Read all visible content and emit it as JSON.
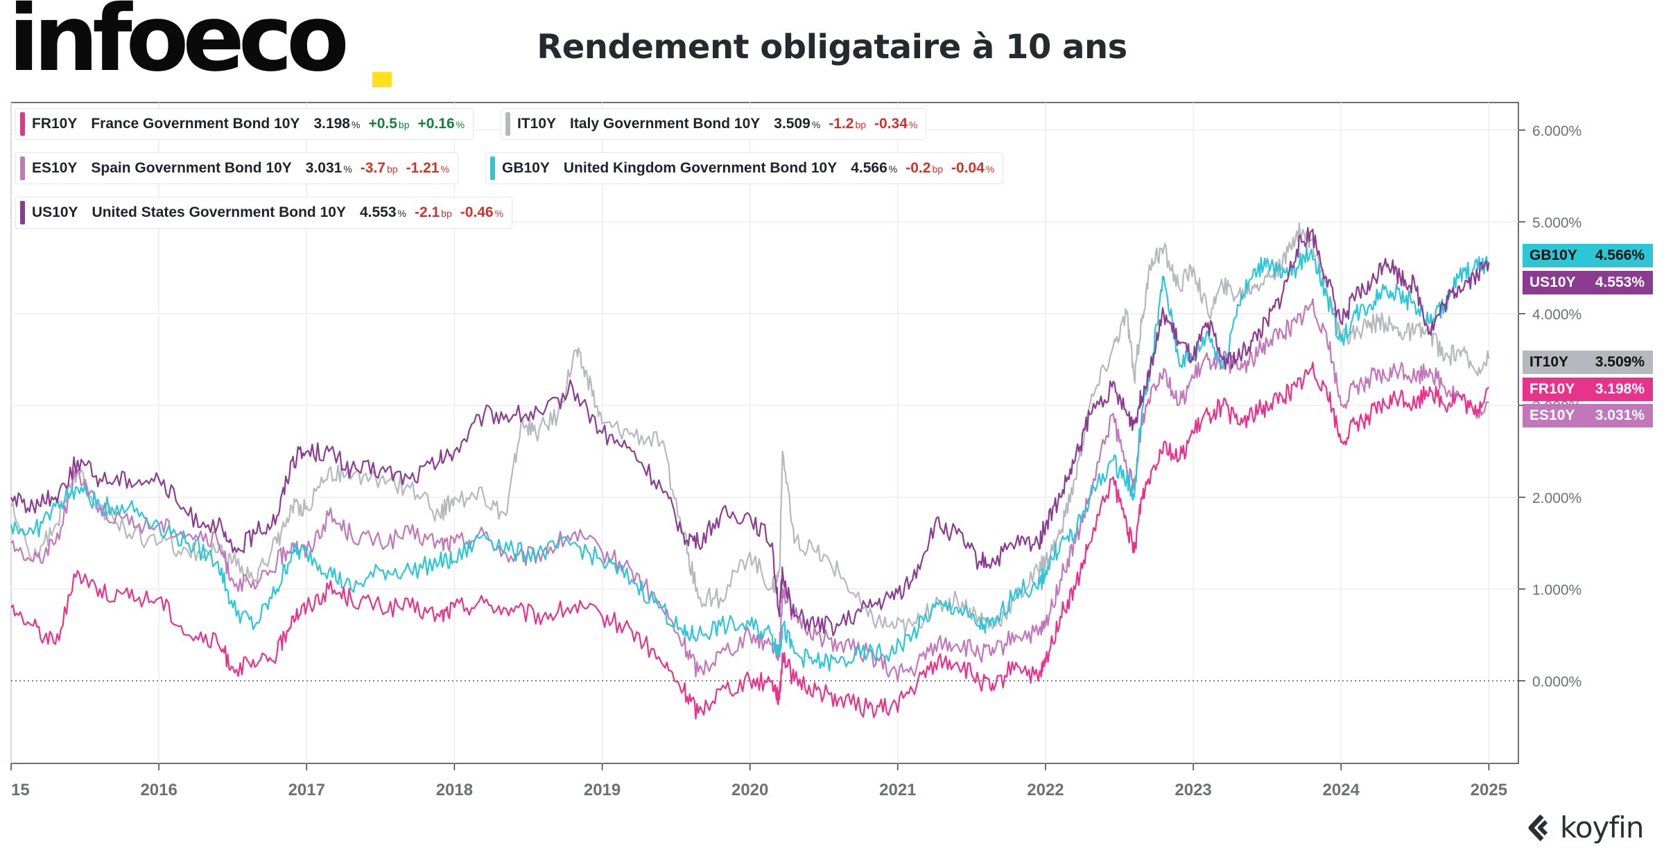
{
  "brand": {
    "name": "infoeco",
    "dot_color": "#ffe01a"
  },
  "footer": {
    "source": "koyfin"
  },
  "chart_data": {
    "type": "line",
    "title": "Rendement obligataire à 10 ans",
    "x_axis": {
      "ticks": [
        "15",
        "2016",
        "2017",
        "2018",
        "2019",
        "2020",
        "2021",
        "2022",
        "2023",
        "2024",
        "2025"
      ],
      "range": [
        2015.0,
        2025.2
      ]
    },
    "y_axis": {
      "ticks": [
        "6.000%",
        "5.000%",
        "4.000%",
        "3.000%",
        "2.000%",
        "1.000%",
        "0.000%"
      ],
      "range": [
        -0.9,
        6.3
      ],
      "side": "right"
    },
    "zero_line": "dotted",
    "grid": true,
    "legend_position": "top-left",
    "series": [
      {
        "code": "FR10Y",
        "name": "France Government Bond 10Y",
        "color": "#e8338a",
        "last": "3.198",
        "change_bp": "+0.5",
        "change_pct": "+0.16%",
        "direction": "pos",
        "end_label": "3.198%",
        "x": [
          2015.0,
          2015.15,
          2015.3,
          2015.45,
          2015.6,
          2015.8,
          2016.0,
          2016.2,
          2016.4,
          2016.5,
          2016.65,
          2016.8,
          2016.9,
          2017.0,
          2017.15,
          2017.3,
          2017.5,
          2017.7,
          2017.9,
          2018.0,
          2018.2,
          2018.4,
          2018.6,
          2018.8,
          2019.0,
          2019.2,
          2019.4,
          2019.55,
          2019.65,
          2019.8,
          2020.0,
          2020.15,
          2020.2,
          2020.22,
          2020.3,
          2020.45,
          2020.6,
          2020.8,
          2020.95,
          2021.1,
          2021.25,
          2021.4,
          2021.55,
          2021.65,
          2021.8,
          2021.95,
          2022.0,
          2022.1,
          2022.2,
          2022.3,
          2022.45,
          2022.55,
          2022.6,
          2022.65,
          2022.72,
          2022.8,
          2022.9,
          2023.0,
          2023.1,
          2023.2,
          2023.3,
          2023.4,
          2023.5,
          2023.6,
          2023.7,
          2023.8,
          2023.9,
          2024.0,
          2024.1,
          2024.2,
          2024.3,
          2024.4,
          2024.5,
          2024.6,
          2024.7,
          2024.8,
          2024.9,
          2025.0
        ],
        "y": [
          0.8,
          0.6,
          0.4,
          1.2,
          1.0,
          0.9,
          0.9,
          0.5,
          0.4,
          0.15,
          0.15,
          0.3,
          0.7,
          0.8,
          1.0,
          0.9,
          0.8,
          0.8,
          0.7,
          0.8,
          0.85,
          0.75,
          0.7,
          0.8,
          0.7,
          0.55,
          0.2,
          -0.1,
          -0.35,
          -0.1,
          0.0,
          0.0,
          -0.2,
          0.3,
          0.0,
          -0.1,
          -0.2,
          -0.3,
          -0.3,
          -0.1,
          0.2,
          0.2,
          0.0,
          -0.1,
          0.2,
          0.0,
          0.2,
          0.7,
          1.0,
          1.5,
          2.2,
          1.7,
          1.4,
          2.0,
          2.3,
          2.6,
          2.4,
          2.7,
          2.9,
          3.0,
          2.8,
          2.9,
          3.0,
          3.1,
          3.2,
          3.4,
          3.2,
          2.6,
          2.8,
          2.9,
          3.0,
          3.1,
          3.0,
          3.2,
          3.0,
          3.1,
          2.9,
          3.198
        ]
      },
      {
        "code": "IT10Y",
        "name": "Italy Government Bond 10Y",
        "color": "#b5b8bc",
        "last": "3.509",
        "change_bp": "-1.2",
        "change_pct": "-0.34%",
        "direction": "neg",
        "end_label": "3.509%",
        "x": [
          2015.0,
          2015.15,
          2015.3,
          2015.45,
          2015.6,
          2015.8,
          2016.0,
          2016.2,
          2016.4,
          2016.5,
          2016.65,
          2016.8,
          2016.9,
          2017.0,
          2017.15,
          2017.3,
          2017.5,
          2017.7,
          2017.9,
          2018.0,
          2018.2,
          2018.35,
          2018.45,
          2018.55,
          2018.7,
          2018.82,
          2018.9,
          2019.0,
          2019.2,
          2019.4,
          2019.55,
          2019.65,
          2019.8,
          2020.0,
          2020.15,
          2020.2,
          2020.22,
          2020.3,
          2020.45,
          2020.6,
          2020.8,
          2020.95,
          2021.1,
          2021.25,
          2021.4,
          2021.55,
          2021.65,
          2021.8,
          2021.95,
          2022.0,
          2022.1,
          2022.2,
          2022.3,
          2022.45,
          2022.55,
          2022.6,
          2022.65,
          2022.72,
          2022.8,
          2022.9,
          2023.0,
          2023.1,
          2023.2,
          2023.3,
          2023.4,
          2023.5,
          2023.6,
          2023.7,
          2023.8,
          2023.9,
          2024.0,
          2024.1,
          2024.2,
          2024.3,
          2024.4,
          2024.5,
          2024.6,
          2024.7,
          2024.8,
          2024.9,
          2025.0
        ],
        "y": [
          1.9,
          1.3,
          1.7,
          2.3,
          1.9,
          1.6,
          1.5,
          1.4,
          1.4,
          1.3,
          1.1,
          1.5,
          1.9,
          1.9,
          2.3,
          2.2,
          2.2,
          2.1,
          1.8,
          2.0,
          2.0,
          1.8,
          2.8,
          2.7,
          2.9,
          3.6,
          3.3,
          2.8,
          2.7,
          2.6,
          1.6,
          0.9,
          0.9,
          1.4,
          1.0,
          1.2,
          2.5,
          1.5,
          1.4,
          1.2,
          0.7,
          0.6,
          0.6,
          0.8,
          0.9,
          0.7,
          0.6,
          0.9,
          1.2,
          1.3,
          1.6,
          2.2,
          3.0,
          3.6,
          4.0,
          3.3,
          3.9,
          4.6,
          4.7,
          4.3,
          4.5,
          4.0,
          4.3,
          4.2,
          4.3,
          4.4,
          4.5,
          4.9,
          4.8,
          4.3,
          3.7,
          3.8,
          3.9,
          3.9,
          3.8,
          3.8,
          3.8,
          3.5,
          3.6,
          3.4,
          3.509
        ]
      },
      {
        "code": "ES10Y",
        "name": "Spain Government Bond 10Y",
        "color": "#c277bb",
        "last": "3.031",
        "change_bp": "-3.7",
        "change_pct": "-1.21%",
        "direction": "neg",
        "end_label": "3.031%",
        "x": [
          2015.0,
          2015.15,
          2015.3,
          2015.45,
          2015.6,
          2015.8,
          2016.0,
          2016.2,
          2016.4,
          2016.5,
          2016.65,
          2016.8,
          2016.9,
          2017.0,
          2017.15,
          2017.3,
          2017.5,
          2017.7,
          2017.9,
          2018.0,
          2018.2,
          2018.4,
          2018.6,
          2018.8,
          2019.0,
          2019.2,
          2019.4,
          2019.55,
          2019.65,
          2019.8,
          2020.0,
          2020.15,
          2020.2,
          2020.22,
          2020.3,
          2020.45,
          2020.6,
          2020.8,
          2020.95,
          2021.1,
          2021.25,
          2021.4,
          2021.55,
          2021.65,
          2021.8,
          2021.95,
          2022.0,
          2022.1,
          2022.2,
          2022.3,
          2022.45,
          2022.55,
          2022.6,
          2022.65,
          2022.72,
          2022.8,
          2022.9,
          2023.0,
          2023.1,
          2023.2,
          2023.3,
          2023.4,
          2023.5,
          2023.6,
          2023.7,
          2023.8,
          2023.9,
          2024.0,
          2024.1,
          2024.2,
          2024.3,
          2024.4,
          2024.5,
          2024.6,
          2024.7,
          2024.8,
          2024.9,
          2025.0
        ],
        "y": [
          1.5,
          1.3,
          1.5,
          2.3,
          1.9,
          1.7,
          1.7,
          1.6,
          1.5,
          1.1,
          1.0,
          1.3,
          1.5,
          1.4,
          1.8,
          1.6,
          1.5,
          1.6,
          1.5,
          1.5,
          1.6,
          1.3,
          1.4,
          1.6,
          1.4,
          1.2,
          0.8,
          0.4,
          0.1,
          0.3,
          0.5,
          0.4,
          0.3,
          1.0,
          0.7,
          0.5,
          0.4,
          0.3,
          0.1,
          0.1,
          0.4,
          0.4,
          0.3,
          0.3,
          0.5,
          0.5,
          0.6,
          1.1,
          1.5,
          2.0,
          2.9,
          2.3,
          2.1,
          2.8,
          3.2,
          3.4,
          3.0,
          3.3,
          3.5,
          3.5,
          3.4,
          3.5,
          3.7,
          3.8,
          3.9,
          4.1,
          3.8,
          3.0,
          3.2,
          3.3,
          3.3,
          3.4,
          3.3,
          3.4,
          3.2,
          3.1,
          2.9,
          3.031
        ]
      },
      {
        "code": "GB10Y",
        "name": "United Kingdom Government Bond 10Y",
        "color": "#2cc6d6",
        "last": "4.566",
        "change_bp": "-0.2",
        "change_pct": "-0.04%",
        "direction": "neg",
        "end_label": "4.566%",
        "x": [
          2015.0,
          2015.15,
          2015.3,
          2015.45,
          2015.6,
          2015.8,
          2016.0,
          2016.2,
          2016.4,
          2016.5,
          2016.65,
          2016.8,
          2016.9,
          2017.0,
          2017.15,
          2017.3,
          2017.5,
          2017.7,
          2017.9,
          2018.0,
          2018.2,
          2018.4,
          2018.6,
          2018.8,
          2019.0,
          2019.2,
          2019.4,
          2019.55,
          2019.65,
          2019.8,
          2020.0,
          2020.15,
          2020.2,
          2020.22,
          2020.3,
          2020.45,
          2020.6,
          2020.8,
          2020.95,
          2021.1,
          2021.25,
          2021.4,
          2021.55,
          2021.65,
          2021.8,
          2021.95,
          2022.0,
          2022.1,
          2022.2,
          2022.3,
          2022.45,
          2022.55,
          2022.6,
          2022.65,
          2022.72,
          2022.8,
          2022.9,
          2023.0,
          2023.1,
          2023.2,
          2023.3,
          2023.4,
          2023.5,
          2023.6,
          2023.7,
          2023.8,
          2023.9,
          2024.0,
          2024.1,
          2024.2,
          2024.3,
          2024.4,
          2024.5,
          2024.6,
          2024.7,
          2024.8,
          2024.9,
          2025.0
        ],
        "y": [
          1.7,
          1.6,
          1.9,
          2.1,
          1.9,
          1.9,
          1.7,
          1.5,
          1.3,
          0.8,
          0.6,
          1.0,
          1.4,
          1.4,
          1.2,
          1.0,
          1.2,
          1.2,
          1.3,
          1.3,
          1.6,
          1.4,
          1.4,
          1.5,
          1.3,
          1.1,
          0.8,
          0.5,
          0.5,
          0.6,
          0.6,
          0.5,
          0.3,
          0.6,
          0.3,
          0.2,
          0.2,
          0.3,
          0.3,
          0.5,
          0.8,
          0.8,
          0.6,
          0.6,
          1.0,
          1.0,
          1.2,
          1.5,
          1.6,
          2.0,
          2.4,
          2.2,
          2.0,
          2.9,
          3.5,
          4.4,
          3.5,
          3.5,
          3.8,
          3.4,
          4.1,
          4.4,
          4.6,
          4.4,
          4.5,
          4.7,
          4.2,
          3.7,
          4.0,
          4.1,
          4.3,
          4.2,
          4.1,
          3.9,
          4.1,
          4.4,
          4.5,
          4.566
        ]
      },
      {
        "code": "US10Y",
        "name": "United States Government Bond 10Y",
        "color": "#8b3c91",
        "last": "4.553",
        "change_bp": "-2.1",
        "change_pct": "-0.46%",
        "direction": "neg",
        "end_label": "4.553%",
        "x": [
          2015.0,
          2015.15,
          2015.3,
          2015.45,
          2015.6,
          2015.8,
          2016.0,
          2016.2,
          2016.4,
          2016.5,
          2016.65,
          2016.8,
          2016.9,
          2017.0,
          2017.15,
          2017.3,
          2017.5,
          2017.7,
          2017.9,
          2018.0,
          2018.2,
          2018.4,
          2018.6,
          2018.8,
          2019.0,
          2019.2,
          2019.4,
          2019.55,
          2019.65,
          2019.8,
          2020.0,
          2020.15,
          2020.2,
          2020.22,
          2020.3,
          2020.45,
          2020.6,
          2020.8,
          2020.95,
          2021.1,
          2021.25,
          2021.4,
          2021.55,
          2021.65,
          2021.8,
          2021.95,
          2022.0,
          2022.1,
          2022.2,
          2022.3,
          2022.45,
          2022.55,
          2022.6,
          2022.65,
          2022.72,
          2022.8,
          2022.9,
          2023.0,
          2023.1,
          2023.2,
          2023.3,
          2023.4,
          2023.5,
          2023.6,
          2023.7,
          2023.8,
          2023.9,
          2024.0,
          2024.1,
          2024.2,
          2024.3,
          2024.4,
          2024.5,
          2024.6,
          2024.7,
          2024.8,
          2024.9,
          2025.0
        ],
        "y": [
          2.0,
          1.9,
          2.0,
          2.4,
          2.2,
          2.2,
          2.2,
          1.8,
          1.7,
          1.4,
          1.6,
          1.8,
          2.4,
          2.5,
          2.5,
          2.3,
          2.3,
          2.2,
          2.4,
          2.5,
          2.9,
          2.9,
          2.9,
          3.2,
          2.7,
          2.5,
          2.1,
          1.6,
          1.5,
          1.8,
          1.8,
          1.5,
          0.7,
          1.2,
          0.7,
          0.6,
          0.6,
          0.8,
          0.9,
          1.1,
          1.7,
          1.6,
          1.3,
          1.3,
          1.5,
          1.5,
          1.7,
          2.0,
          2.4,
          2.9,
          3.2,
          2.9,
          2.8,
          3.1,
          3.5,
          4.0,
          3.7,
          3.5,
          3.9,
          3.5,
          3.5,
          3.7,
          3.9,
          4.2,
          4.7,
          4.9,
          4.4,
          3.9,
          4.2,
          4.3,
          4.6,
          4.4,
          4.3,
          3.8,
          4.1,
          4.3,
          4.4,
          4.553
        ]
      }
    ]
  }
}
